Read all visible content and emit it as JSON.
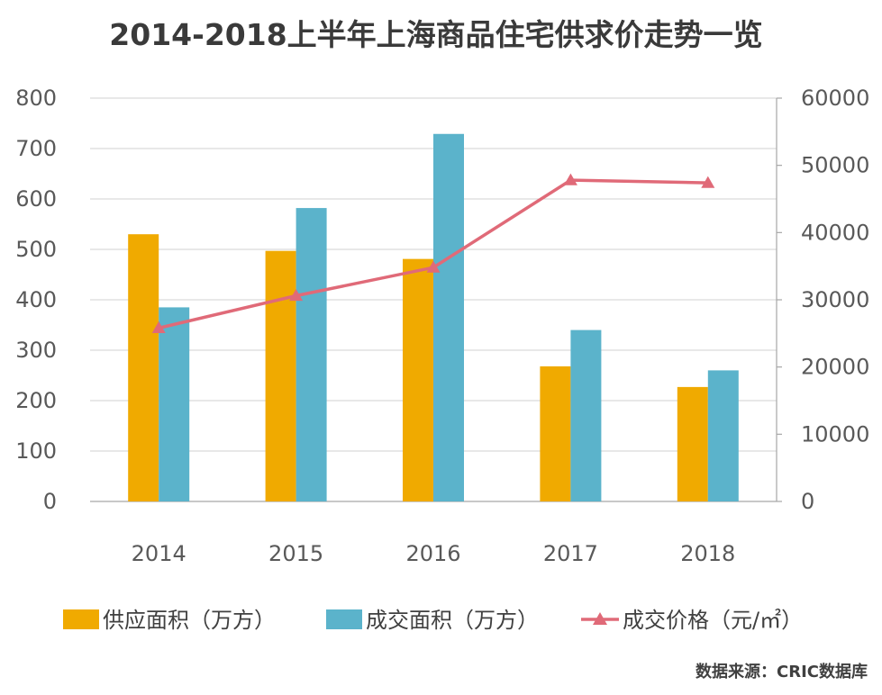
{
  "chart_data": {
    "type": "bar",
    "title": "2014-2018上半年上海商品住宅供求价走势一览",
    "categories": [
      "2014",
      "2015",
      "2016",
      "2017",
      "2018"
    ],
    "series": [
      {
        "name": "供应面积（万方）",
        "type": "bar",
        "axis": "left",
        "color": "#F0AA00",
        "values": [
          530,
          497,
          481,
          268,
          227
        ]
      },
      {
        "name": "成交面积（万方）",
        "type": "bar",
        "axis": "left",
        "color": "#5BB3CB",
        "values": [
          385,
          582,
          729,
          340,
          260
        ]
      },
      {
        "name": "成交价格（元/㎡）",
        "type": "line",
        "axis": "right",
        "color": "#E06A78",
        "marker": "triangle",
        "values": [
          25800,
          30600,
          34800,
          47800,
          47400
        ]
      }
    ],
    "y_left": {
      "min": 0,
      "max": 800,
      "ticks": [
        "0",
        "100",
        "200",
        "300",
        "400",
        "500",
        "600",
        "700",
        "800"
      ]
    },
    "y_right": {
      "min": 0,
      "max": 60000,
      "ticks": [
        "0",
        "10000",
        "20000",
        "30000",
        "40000",
        "50000",
        "60000"
      ]
    },
    "grid": true,
    "legend_position": "bottom"
  },
  "source": "数据来源：CRIC数据库"
}
